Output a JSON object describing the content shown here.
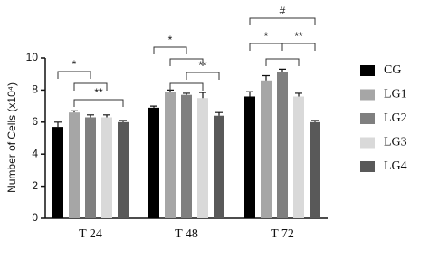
{
  "chart_data": {
    "type": "bar",
    "ylabel": "Number of Cells (x10⁴)",
    "categories": [
      "T 24",
      "T 48",
      "T 72"
    ],
    "ylim": [
      0,
      10
    ],
    "yticks": [
      0,
      2,
      4,
      6,
      8,
      10
    ],
    "series": [
      {
        "name": "CG",
        "color": "#000000",
        "values": [
          5.7,
          6.9,
          7.6
        ],
        "errors": [
          0.3,
          0.1,
          0.3
        ]
      },
      {
        "name": "LG1",
        "color": "#a6a6a6",
        "values": [
          6.6,
          7.9,
          8.6
        ],
        "errors": [
          0.1,
          0.1,
          0.3
        ]
      },
      {
        "name": "LG2",
        "color": "#7f7f7f",
        "values": [
          6.3,
          7.7,
          9.1
        ],
        "errors": [
          0.15,
          0.1,
          0.2
        ]
      },
      {
        "name": "LG3",
        "color": "#d9d9d9",
        "values": [
          6.3,
          7.5,
          7.6
        ],
        "errors": [
          0.15,
          0.35,
          0.2
        ]
      },
      {
        "name": "LG4",
        "color": "#595959",
        "values": [
          6.0,
          6.4,
          6.0
        ],
        "errors": [
          0.1,
          0.2,
          0.1
        ]
      }
    ],
    "annotations": [
      "*",
      "**",
      "*",
      "**",
      "*",
      "**",
      "#"
    ]
  }
}
